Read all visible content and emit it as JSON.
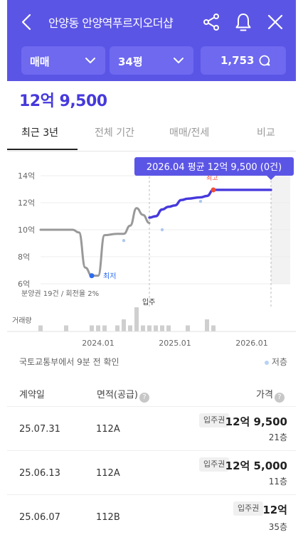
{
  "header": {
    "title": "안양동 안양역푸르지오더샵",
    "icons": [
      "back-arrow-icon",
      "share-icon",
      "bell-icon",
      "close-icon"
    ],
    "accent_color": "#5b55e6"
  },
  "filters": {
    "trade_type": "매매",
    "size": "34평",
    "count": "1,753"
  },
  "price_headline": "12억 9,500",
  "tabs": [
    "최근 3년",
    "전체 기간",
    "매매/전세",
    "비교"
  ],
  "tooltip": "2026.04 평균 12억 9,500 (0건)",
  "chart_labels": {
    "min_marker": "최저",
    "max_marker": "최고",
    "presale_note": "분양권 19건 / 회전율 2%",
    "move_in": "입주",
    "volume_label": "거래량"
  },
  "chart_data": {
    "type": "line",
    "title": "",
    "xlabel": "",
    "ylabel": "",
    "y_ticks": [
      "14억",
      "12억",
      "10억",
      "8억",
      "6억"
    ],
    "ylim": [
      6,
      14
    ],
    "x_ticks": [
      "2024.01",
      "2025.01",
      "2026.01"
    ],
    "xlim": [
      "2023.04",
      "2026.07"
    ],
    "series": [
      {
        "name": "분양권",
        "color": "#999999",
        "points": [
          [
            "2023.04",
            10.0
          ],
          [
            "2023.07",
            10.0
          ],
          [
            "2023.09",
            10.0
          ],
          [
            "2023.10",
            9.8
          ],
          [
            "2023.11",
            7.2
          ],
          [
            "2023.12",
            6.6
          ],
          [
            "2024.01",
            6.6
          ],
          [
            "2024.02",
            9.6
          ],
          [
            "2024.04",
            9.7
          ],
          [
            "2024.05",
            9.7
          ],
          [
            "2024.06",
            10.3
          ],
          [
            "2024.07",
            11.6
          ],
          [
            "2024.08",
            11.1
          ],
          [
            "2024.09",
            10.5
          ]
        ]
      },
      {
        "name": "입주권",
        "color": "#4639dc",
        "points": [
          [
            "2024.09",
            10.9
          ],
          [
            "2024.10",
            11.0
          ],
          [
            "2024.11",
            11.5
          ],
          [
            "2024.12",
            11.7
          ],
          [
            "2025.01",
            11.8
          ],
          [
            "2025.02",
            12.2
          ],
          [
            "2025.03",
            12.3
          ],
          [
            "2025.05",
            12.4
          ],
          [
            "2025.06",
            12.5
          ],
          [
            "2025.07",
            12.95
          ],
          [
            "2025.09",
            12.95
          ],
          [
            "2026.01",
            12.95
          ],
          [
            "2026.04",
            12.95
          ]
        ]
      }
    ],
    "scatter": [
      [
        "2024.05",
        9.2
      ],
      [
        "2024.11",
        10.0
      ],
      [
        "2025.05",
        12.1
      ]
    ],
    "min_point": [
      "2023.12",
      6.6
    ],
    "max_point": [
      "2025.07",
      12.95
    ],
    "volume": [
      [
        "2023.04",
        1
      ],
      [
        "2023.08",
        1
      ],
      [
        "2023.12",
        1
      ],
      [
        "2024.01",
        1
      ],
      [
        "2024.02",
        1
      ],
      [
        "2024.04",
        1
      ],
      [
        "2024.05",
        2
      ],
      [
        "2024.06",
        1
      ],
      [
        "2024.07",
        4
      ],
      [
        "2024.08",
        1
      ],
      [
        "2024.09",
        1
      ],
      [
        "2024.10",
        1
      ],
      [
        "2024.11",
        1
      ],
      [
        "2024.12",
        1
      ],
      [
        "2025.03",
        1
      ],
      [
        "2025.06",
        2
      ],
      [
        "2025.07",
        1
      ]
    ]
  },
  "source_text": "국토교통부에서 9분 전 확인",
  "legend_text": "저층",
  "list": {
    "headers": [
      "계약일",
      "면적(공급)",
      "가격"
    ],
    "rows": [
      {
        "date": "25.07.31",
        "area": "112A",
        "badge": "입주권",
        "price": "12억 9,500",
        "floor": "21층"
      },
      {
        "date": "25.06.13",
        "area": "112A",
        "badge": "입주권",
        "price": "12억 5,000",
        "floor": "11층"
      },
      {
        "date": "25.06.07",
        "area": "112B",
        "badge": "입주권",
        "price": "12억",
        "floor": "35층"
      }
    ]
  }
}
